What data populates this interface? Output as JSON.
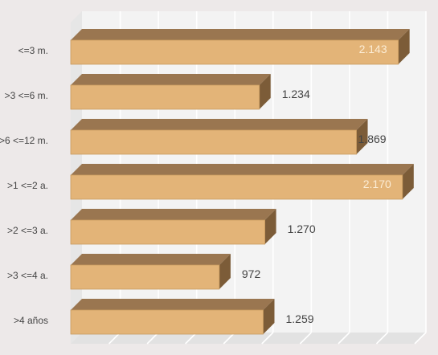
{
  "chart_data": {
    "type": "bar",
    "orientation": "horizontal",
    "three_d": true,
    "categories": [
      "<=3 m.",
      ">3 <=6 m.",
      ">6 <=12 m.",
      ">1 <=2 a.",
      ">2 <=3 a.",
      ">3 <=4 a.",
      ">4 años"
    ],
    "values": [
      2143,
      1234,
      1869,
      2170,
      1270,
      972,
      1259
    ],
    "value_labels": [
      "2.143",
      "1.234",
      "1.869",
      "2.170",
      "1.270",
      "972",
      "1.259"
    ],
    "xlim": [
      0,
      2250
    ],
    "grid": true,
    "legend": "none",
    "title": "",
    "xlabel": "",
    "ylabel": "",
    "colors": {
      "bar_front": "#e3b478",
      "bar_top": "#9a7650",
      "bar_side": "#7c5c38",
      "bar_outline": "#c79a5e",
      "label_inside": "#fbecd4",
      "label_outside": "#444444",
      "category_text": "#444444",
      "plot_back": "#f3f3f3",
      "plot_floor": "#e2e2e2",
      "grid": "#d8d8d8",
      "background": "#ede9e9"
    }
  }
}
